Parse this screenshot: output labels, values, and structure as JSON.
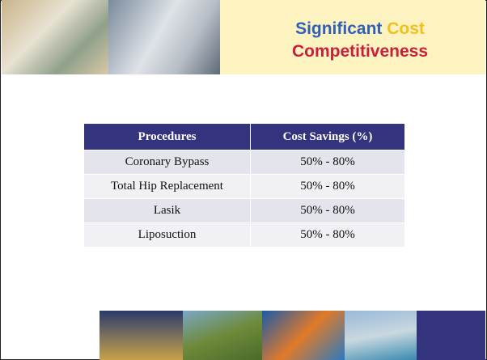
{
  "header": {
    "title_parts": [
      "Significant",
      "Cost",
      "Competitiveness"
    ]
  },
  "table": {
    "columns": [
      "Procedures",
      "Cost Savings (%)"
    ],
    "rows": [
      [
        "Coronary Bypass",
        "50% - 80%"
      ],
      [
        "Total Hip Replacement",
        "50% - 80%"
      ],
      [
        "Lasik",
        "50% - 80%"
      ],
      [
        "Liposuction",
        "50% - 80%"
      ]
    ]
  }
}
